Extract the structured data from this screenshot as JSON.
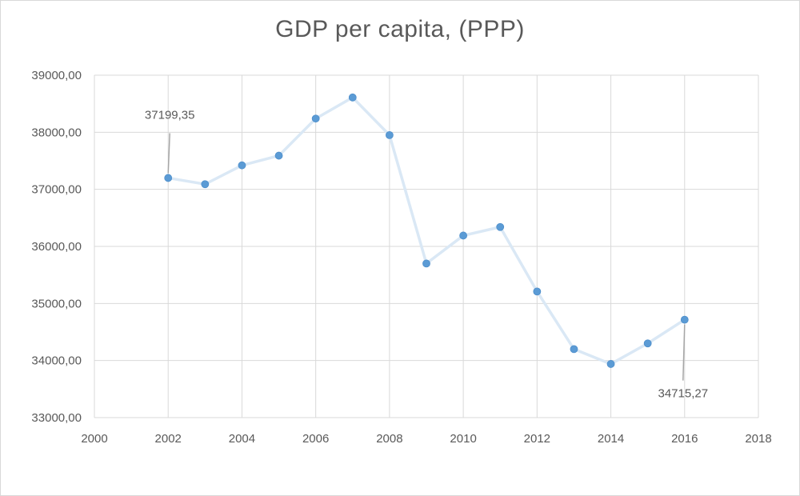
{
  "chart_data": {
    "type": "scatter",
    "title": "GDP per capita, (PPP)",
    "xlabel": "",
    "ylabel": "",
    "xlim": [
      2000,
      2018
    ],
    "ylim": [
      33000,
      39000
    ],
    "x_ticks": [
      2000,
      2002,
      2004,
      2006,
      2008,
      2010,
      2012,
      2014,
      2016,
      2018
    ],
    "y_ticks": [
      33000,
      34000,
      35000,
      36000,
      37000,
      38000,
      39000
    ],
    "y_tick_labels": [
      "33000,00",
      "34000,00",
      "35000,00",
      "36000,00",
      "37000,00",
      "38000,00",
      "39000,00"
    ],
    "grid": true,
    "series": [
      {
        "x": [
          2002,
          2003,
          2004,
          2005,
          2006,
          2007,
          2008,
          2009,
          2010,
          2011,
          2012,
          2013,
          2014,
          2015,
          2016
        ],
        "y": [
          37199.35,
          37090,
          37420,
          37590,
          38240,
          38610,
          37950,
          35700,
          36190,
          36340,
          35210,
          34200,
          33940,
          34300,
          34715.27
        ],
        "color": "#5b9bd5",
        "line_color": "#dae8f5"
      }
    ],
    "annotations": [
      {
        "x": 2002,
        "y": 37199.35,
        "text": "37199,35",
        "placement": "above"
      },
      {
        "x": 2016,
        "y": 34715.27,
        "text": "34715,27",
        "placement": "below"
      }
    ]
  }
}
